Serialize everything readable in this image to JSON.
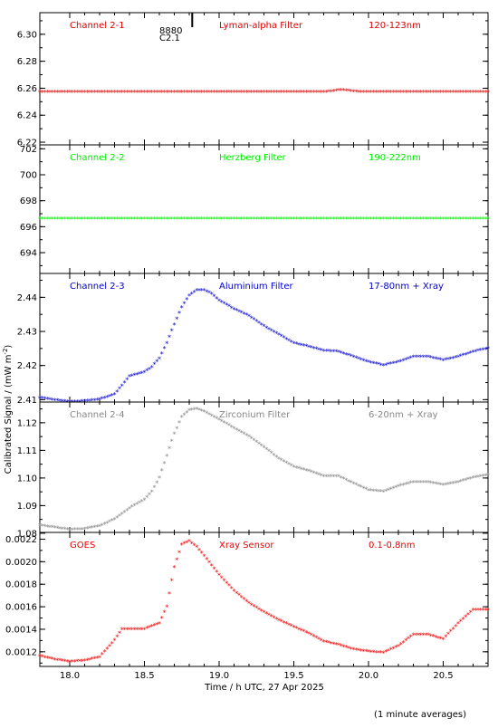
{
  "figure": {
    "ylabel": "Calibrated Signal / (mW m",
    "ylabel_sup": "-2",
    "ylabel_close": ")",
    "xlabel": "Time / h UTC, 27 Apr 2025",
    "footnote": "(1 minute averages)",
    "flare_marker_label_1": "8880",
    "flare_marker_label_2": "C2.1",
    "flare_marker_x": 18.82
  },
  "chart_data": [
    {
      "type": "scatter",
      "channel": "Channel 2-1",
      "filter": "Lyman-alpha Filter",
      "band": "120-123nm",
      "color": "#dd0000",
      "xlim": [
        17.8,
        20.8
      ],
      "ylim": [
        6.218,
        6.316
      ],
      "yticks": [
        6.22,
        6.24,
        6.26,
        6.28,
        6.3
      ],
      "ytick_labels": [
        "6.22",
        "6.24",
        "6.26",
        "6.28",
        "6.30"
      ],
      "series": [
        {
          "x": [
            17.8,
            19.7,
            19.75,
            19.8,
            19.85,
            19.9,
            19.95,
            20.8
          ],
          "y": [
            6.257,
            6.257,
            6.2575,
            6.2585,
            6.2583,
            6.2575,
            6.257,
            6.257
          ]
        }
      ]
    },
    {
      "type": "scatter",
      "channel": "Channel 2-2",
      "filter": "Herzberg Filter",
      "band": "190-222nm",
      "color": "#00ee00",
      "xlim": [
        17.8,
        20.8
      ],
      "ylim": [
        692.4,
        702.3
      ],
      "yticks": [
        694,
        696,
        698,
        700,
        702
      ],
      "ytick_labels": [
        "694",
        "696",
        "698",
        "700",
        "702"
      ],
      "series": [
        {
          "x": [
            17.8,
            20.8
          ],
          "y": [
            696.6,
            696.6
          ]
        }
      ]
    },
    {
      "type": "scatter",
      "channel": "Channel 2-3",
      "filter": "Aluminium Filter",
      "band": "17-80nm + Xray",
      "color": "#0000cc",
      "xlim": [
        17.8,
        20.8
      ],
      "ylim": [
        2.4093,
        2.447
      ],
      "yticks": [
        2.41,
        2.42,
        2.43,
        2.44
      ],
      "ytick_labels": [
        "2.41",
        "2.42",
        "2.43",
        "2.44"
      ],
      "series": [
        {
          "x": [
            17.8,
            17.9,
            18.0,
            18.1,
            18.2,
            18.3,
            18.35,
            18.4,
            18.5,
            18.55,
            18.6,
            18.65,
            18.7,
            18.75,
            18.8,
            18.85,
            18.9,
            18.95,
            19.0,
            19.1,
            19.2,
            19.3,
            19.4,
            19.5,
            19.6,
            19.7,
            19.8,
            19.9,
            20.0,
            20.1,
            20.2,
            20.3,
            20.4,
            20.5,
            20.6,
            20.7,
            20.8
          ],
          "y": [
            2.4105,
            2.4098,
            2.4093,
            2.4095,
            2.41,
            2.4115,
            2.414,
            2.4168,
            2.418,
            2.4195,
            2.422,
            2.4265,
            2.432,
            2.437,
            2.4405,
            2.442,
            2.442,
            2.441,
            2.439,
            2.4365,
            2.4345,
            2.4315,
            2.429,
            2.4265,
            2.4255,
            2.4243,
            2.424,
            2.4225,
            2.421,
            2.42,
            2.421,
            2.4225,
            2.4225,
            2.4215,
            2.4225,
            2.424,
            2.425
          ]
        }
      ]
    },
    {
      "type": "scatter",
      "channel": "Channel 2-4",
      "filter": "Zirconium Filter",
      "band": "6-20nm + Xray",
      "color": "#888888",
      "xlim": [
        17.8,
        20.8
      ],
      "ylim": [
        1.0803,
        1.1275
      ],
      "yticks": [
        1.08,
        1.09,
        1.1,
        1.11,
        1.12
      ],
      "ytick_labels": [
        "1.08",
        "1.09",
        "1.10",
        "1.11",
        "1.12"
      ],
      "series": [
        {
          "x": [
            17.8,
            17.9,
            18.0,
            18.1,
            18.2,
            18.3,
            18.4,
            18.5,
            18.55,
            18.6,
            18.65,
            18.7,
            18.75,
            18.8,
            18.85,
            18.9,
            19.0,
            19.1,
            19.2,
            19.3,
            19.4,
            19.5,
            19.6,
            19.7,
            19.8,
            19.9,
            20.0,
            20.1,
            20.2,
            20.3,
            20.4,
            20.5,
            20.6,
            20.7,
            20.8
          ],
          "y": [
            1.0828,
            1.082,
            1.0812,
            1.0815,
            1.0825,
            1.085,
            1.089,
            1.092,
            1.095,
            1.1,
            1.108,
            1.116,
            1.122,
            1.1245,
            1.125,
            1.124,
            1.121,
            1.118,
            1.115,
            1.111,
            1.107,
            1.104,
            1.1025,
            1.1005,
            1.1005,
            1.098,
            1.0955,
            1.095,
            1.097,
            1.0985,
            1.0985,
            1.0975,
            1.0985,
            1.1,
            1.101
          ]
        }
      ]
    },
    {
      "type": "scatter",
      "channel": "GOES",
      "filter": "Xray Sensor",
      "band": "0.1-0.8nm",
      "color": "#ee0000",
      "xlim": [
        17.8,
        20.8
      ],
      "ylim": [
        0.00107,
        0.00226
      ],
      "yticks": [
        0.0012,
        0.0014,
        0.0016,
        0.0018,
        0.002,
        0.0022
      ],
      "ytick_labels": [
        "0.0012",
        "0.0014",
        "0.0016",
        "0.0018",
        "0.0020",
        "0.0022"
      ],
      "xticks": [
        18.0,
        18.5,
        19.0,
        19.5,
        20.0,
        20.5
      ],
      "xtick_labels": [
        "18.0",
        "18.5",
        "19.0",
        "19.5",
        "20.0",
        "20.5"
      ],
      "series": [
        {
          "x": [
            17.8,
            17.9,
            18.0,
            18.1,
            18.2,
            18.3,
            18.35,
            18.4,
            18.5,
            18.6,
            18.65,
            18.7,
            18.75,
            18.8,
            18.85,
            18.9,
            19.0,
            19.1,
            19.2,
            19.3,
            19.4,
            19.5,
            19.6,
            19.7,
            19.8,
            19.9,
            20.0,
            20.1,
            20.2,
            20.3,
            20.4,
            20.5,
            20.6,
            20.7,
            20.8
          ],
          "y": [
            0.00116,
            0.00113,
            0.00111,
            0.00112,
            0.00115,
            0.0013,
            0.0014,
            0.0014,
            0.0014,
            0.00145,
            0.0016,
            0.00195,
            0.00215,
            0.00218,
            0.00213,
            0.00205,
            0.00188,
            0.00174,
            0.00163,
            0.00155,
            0.00148,
            0.00142,
            0.00136,
            0.00129,
            0.00126,
            0.00122,
            0.0012,
            0.00119,
            0.00125,
            0.00135,
            0.00135,
            0.00131,
            0.00145,
            0.00157,
            0.00157
          ]
        }
      ]
    }
  ]
}
